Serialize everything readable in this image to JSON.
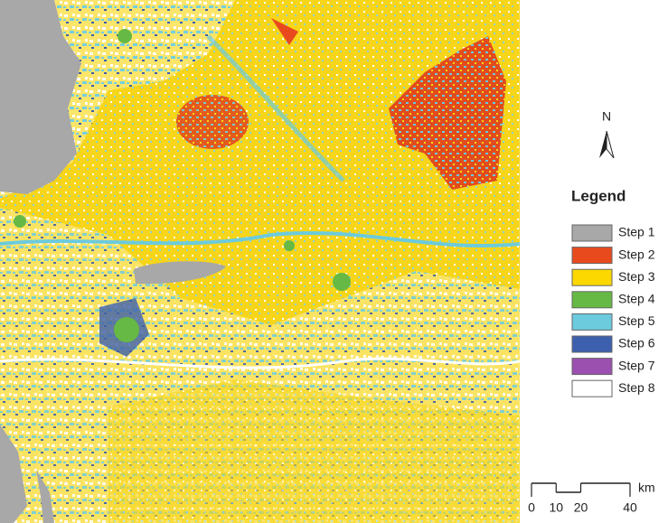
{
  "north_arrow": {
    "label": "N"
  },
  "legend": {
    "title": "Legend",
    "items": [
      {
        "label": "Step 1",
        "color": "#a8a8a8"
      },
      {
        "label": "Step 2",
        "color": "#e84a1e"
      },
      {
        "label": "Step 3",
        "color": "#fcd800"
      },
      {
        "label": "Step 4",
        "color": "#66b944"
      },
      {
        "label": "Step 5",
        "color": "#6ccbdc"
      },
      {
        "label": "Step 6",
        "color": "#3c5fae"
      },
      {
        "label": "Step 7",
        "color": "#9b50b0"
      },
      {
        "label": "Step 8",
        "color": "#ffffff"
      }
    ]
  },
  "scale_bar": {
    "ticks": [
      0,
      10,
      20,
      40
    ],
    "unit": "km"
  }
}
